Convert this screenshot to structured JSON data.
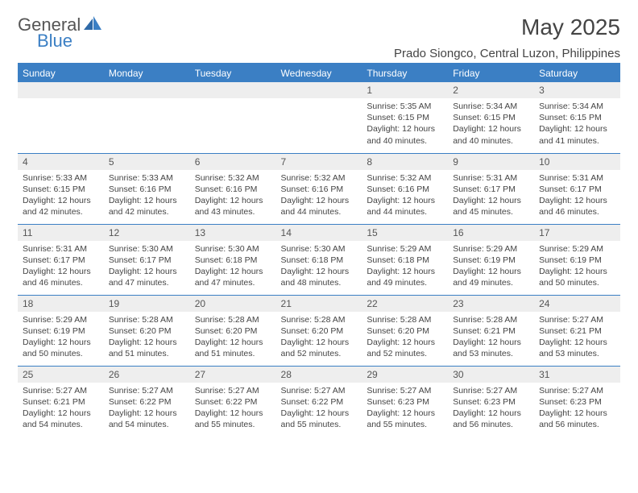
{
  "logo": {
    "text1": "General",
    "text2": "Blue"
  },
  "title": "May 2025",
  "location": "Prado Siongco, Central Luzon, Philippines",
  "colors": {
    "header_bg": "#3b7fc4",
    "header_text": "#ffffff",
    "daynum_bg": "#eeeeee",
    "border": "#3b7fc4",
    "body_bg": "#ffffff",
    "text": "#444444"
  },
  "weekdays": [
    "Sunday",
    "Monday",
    "Tuesday",
    "Wednesday",
    "Thursday",
    "Friday",
    "Saturday"
  ],
  "weeks": [
    [
      null,
      null,
      null,
      null,
      {
        "n": "1",
        "sunrise": "5:35 AM",
        "sunset": "6:15 PM",
        "daylight": "12 hours and 40 minutes."
      },
      {
        "n": "2",
        "sunrise": "5:34 AM",
        "sunset": "6:15 PM",
        "daylight": "12 hours and 40 minutes."
      },
      {
        "n": "3",
        "sunrise": "5:34 AM",
        "sunset": "6:15 PM",
        "daylight": "12 hours and 41 minutes."
      }
    ],
    [
      {
        "n": "4",
        "sunrise": "5:33 AM",
        "sunset": "6:15 PM",
        "daylight": "12 hours and 42 minutes."
      },
      {
        "n": "5",
        "sunrise": "5:33 AM",
        "sunset": "6:16 PM",
        "daylight": "12 hours and 42 minutes."
      },
      {
        "n": "6",
        "sunrise": "5:32 AM",
        "sunset": "6:16 PM",
        "daylight": "12 hours and 43 minutes."
      },
      {
        "n": "7",
        "sunrise": "5:32 AM",
        "sunset": "6:16 PM",
        "daylight": "12 hours and 44 minutes."
      },
      {
        "n": "8",
        "sunrise": "5:32 AM",
        "sunset": "6:16 PM",
        "daylight": "12 hours and 44 minutes."
      },
      {
        "n": "9",
        "sunrise": "5:31 AM",
        "sunset": "6:17 PM",
        "daylight": "12 hours and 45 minutes."
      },
      {
        "n": "10",
        "sunrise": "5:31 AM",
        "sunset": "6:17 PM",
        "daylight": "12 hours and 46 minutes."
      }
    ],
    [
      {
        "n": "11",
        "sunrise": "5:31 AM",
        "sunset": "6:17 PM",
        "daylight": "12 hours and 46 minutes."
      },
      {
        "n": "12",
        "sunrise": "5:30 AM",
        "sunset": "6:17 PM",
        "daylight": "12 hours and 47 minutes."
      },
      {
        "n": "13",
        "sunrise": "5:30 AM",
        "sunset": "6:18 PM",
        "daylight": "12 hours and 47 minutes."
      },
      {
        "n": "14",
        "sunrise": "5:30 AM",
        "sunset": "6:18 PM",
        "daylight": "12 hours and 48 minutes."
      },
      {
        "n": "15",
        "sunrise": "5:29 AM",
        "sunset": "6:18 PM",
        "daylight": "12 hours and 49 minutes."
      },
      {
        "n": "16",
        "sunrise": "5:29 AM",
        "sunset": "6:19 PM",
        "daylight": "12 hours and 49 minutes."
      },
      {
        "n": "17",
        "sunrise": "5:29 AM",
        "sunset": "6:19 PM",
        "daylight": "12 hours and 50 minutes."
      }
    ],
    [
      {
        "n": "18",
        "sunrise": "5:29 AM",
        "sunset": "6:19 PM",
        "daylight": "12 hours and 50 minutes."
      },
      {
        "n": "19",
        "sunrise": "5:28 AM",
        "sunset": "6:20 PM",
        "daylight": "12 hours and 51 minutes."
      },
      {
        "n": "20",
        "sunrise": "5:28 AM",
        "sunset": "6:20 PM",
        "daylight": "12 hours and 51 minutes."
      },
      {
        "n": "21",
        "sunrise": "5:28 AM",
        "sunset": "6:20 PM",
        "daylight": "12 hours and 52 minutes."
      },
      {
        "n": "22",
        "sunrise": "5:28 AM",
        "sunset": "6:20 PM",
        "daylight": "12 hours and 52 minutes."
      },
      {
        "n": "23",
        "sunrise": "5:28 AM",
        "sunset": "6:21 PM",
        "daylight": "12 hours and 53 minutes."
      },
      {
        "n": "24",
        "sunrise": "5:27 AM",
        "sunset": "6:21 PM",
        "daylight": "12 hours and 53 minutes."
      }
    ],
    [
      {
        "n": "25",
        "sunrise": "5:27 AM",
        "sunset": "6:21 PM",
        "daylight": "12 hours and 54 minutes."
      },
      {
        "n": "26",
        "sunrise": "5:27 AM",
        "sunset": "6:22 PM",
        "daylight": "12 hours and 54 minutes."
      },
      {
        "n": "27",
        "sunrise": "5:27 AM",
        "sunset": "6:22 PM",
        "daylight": "12 hours and 55 minutes."
      },
      {
        "n": "28",
        "sunrise": "5:27 AM",
        "sunset": "6:22 PM",
        "daylight": "12 hours and 55 minutes."
      },
      {
        "n": "29",
        "sunrise": "5:27 AM",
        "sunset": "6:23 PM",
        "daylight": "12 hours and 55 minutes."
      },
      {
        "n": "30",
        "sunrise": "5:27 AM",
        "sunset": "6:23 PM",
        "daylight": "12 hours and 56 minutes."
      },
      {
        "n": "31",
        "sunrise": "5:27 AM",
        "sunset": "6:23 PM",
        "daylight": "12 hours and 56 minutes."
      }
    ]
  ],
  "labels": {
    "sunrise": "Sunrise:",
    "sunset": "Sunset:",
    "daylight": "Daylight:"
  }
}
